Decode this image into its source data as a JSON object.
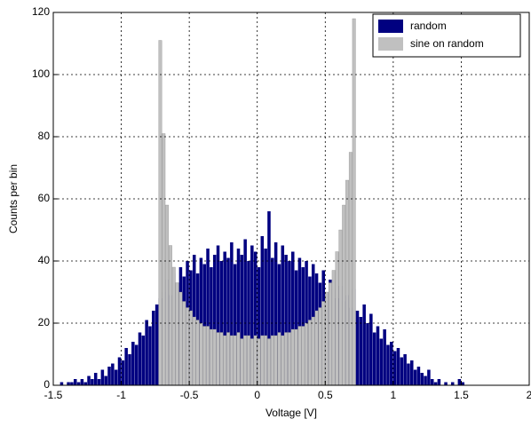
{
  "chart_data": {
    "type": "histogram",
    "xlabel": "Voltage [V]",
    "ylabel": "Counts per bin",
    "bins": [
      -1.45,
      -1.425,
      -1.4,
      -1.375,
      -1.35,
      -1.325,
      -1.3,
      -1.275,
      -1.25,
      -1.225,
      -1.2,
      -1.175,
      -1.15,
      -1.125,
      -1.1,
      -1.075,
      -1.05,
      -1.025,
      -1,
      -0.975,
      -0.95,
      -0.925,
      -0.9,
      -0.875,
      -0.85,
      -0.825,
      -0.8,
      -0.775,
      -0.75,
      -0.725,
      -0.7,
      -0.675,
      -0.65,
      -0.625,
      -0.6,
      -0.575,
      -0.55,
      -0.525,
      -0.5,
      -0.475,
      -0.45,
      -0.425,
      -0.4,
      -0.375,
      -0.35,
      -0.325,
      -0.3,
      -0.275,
      -0.25,
      -0.225,
      -0.2,
      -0.175,
      -0.15,
      -0.125,
      -0.1,
      -0.075,
      -0.05,
      -0.025,
      0,
      0.025,
      0.05,
      0.075,
      0.1,
      0.125,
      0.15,
      0.175,
      0.2,
      0.225,
      0.25,
      0.275,
      0.3,
      0.325,
      0.35,
      0.375,
      0.4,
      0.425,
      0.45,
      0.475,
      0.5,
      0.525,
      0.55,
      0.575,
      0.6,
      0.625,
      0.65,
      0.675,
      0.7,
      0.725,
      0.75,
      0.775,
      0.8,
      0.825,
      0.85,
      0.875,
      0.9,
      0.925,
      0.95,
      0.975,
      1,
      1.025,
      1.05,
      1.075,
      1.1,
      1.125,
      1.15,
      1.175,
      1.2,
      1.225,
      1.25,
      1.275,
      1.3,
      1.325,
      1.35,
      1.375,
      1.4,
      1.425,
      1.45,
      1.475,
      1.5,
      1.525,
      1.55
    ],
    "series": [
      {
        "name": "random",
        "color": "#000080",
        "values": [
          1,
          0,
          1,
          1,
          2,
          1,
          2,
          1,
          3,
          2,
          4,
          2,
          5,
          3,
          6,
          7,
          5,
          9,
          8,
          12,
          10,
          14,
          13,
          17,
          16,
          21,
          19,
          24,
          26,
          28,
          30,
          34,
          29,
          36,
          33,
          38,
          35,
          40,
          37,
          42,
          36,
          41,
          39,
          44,
          38,
          42,
          45,
          40,
          43,
          41,
          46,
          39,
          44,
          42,
          47,
          40,
          45,
          43,
          38,
          48,
          44,
          56,
          41,
          46,
          39,
          45,
          42,
          40,
          43,
          37,
          41,
          38,
          40,
          35,
          39,
          36,
          33,
          37,
          30,
          34,
          31,
          28,
          32,
          27,
          29,
          25,
          31,
          24,
          22,
          26,
          20,
          23,
          17,
          19,
          15,
          18,
          13,
          14,
          11,
          12,
          9,
          10,
          7,
          8,
          5,
          6,
          4,
          3,
          5,
          2,
          1,
          2,
          0,
          1,
          0,
          1,
          0,
          2,
          1,
          0
        ]
      },
      {
        "name": "sine on random",
        "color": "#c0c0c0",
        "values": [
          0,
          0,
          0,
          0,
          0,
          0,
          0,
          0,
          0,
          0,
          0,
          0,
          0,
          0,
          0,
          0,
          0,
          0,
          0,
          0,
          0,
          0,
          0,
          0,
          0,
          0,
          0,
          0,
          0,
          111,
          81,
          58,
          45,
          38,
          33,
          30,
          27,
          25,
          24,
          22,
          21,
          20,
          19,
          19,
          18,
          18,
          17,
          17,
          16,
          17,
          16,
          16,
          17,
          15,
          16,
          16,
          15,
          16,
          15,
          16,
          16,
          15,
          16,
          16,
          17,
          16,
          17,
          17,
          18,
          18,
          19,
          19,
          20,
          21,
          22,
          24,
          25,
          27,
          30,
          33,
          37,
          43,
          50,
          58,
          66,
          75,
          118,
          0,
          0,
          0,
          0,
          0,
          0,
          0,
          0,
          0,
          0,
          0,
          0,
          0,
          0,
          0,
          0,
          0,
          0,
          0,
          0,
          0,
          0,
          0,
          0,
          0,
          0,
          0,
          0,
          0,
          0,
          0,
          0,
          0
        ]
      }
    ],
    "xlim": [
      -1.5,
      2
    ],
    "ylim": [
      0,
      120
    ],
    "xticks": [
      -1.5,
      -1,
      -0.5,
      0,
      0.5,
      1,
      1.5,
      2
    ],
    "yticks": [
      0,
      20,
      40,
      60,
      80,
      100,
      120
    ],
    "grid": true,
    "legend": "upper right"
  }
}
